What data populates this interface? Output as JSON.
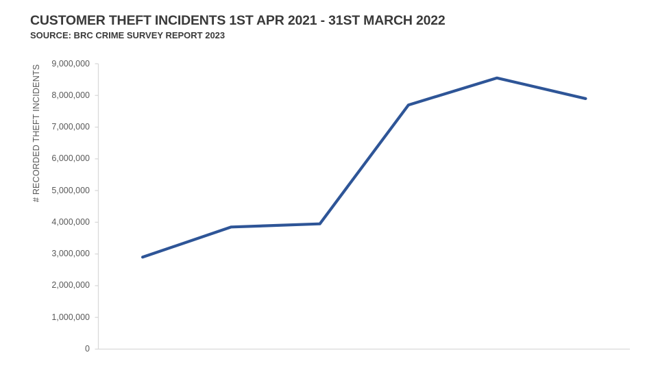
{
  "header": {
    "title": "CUSTOMER THEFT INCIDENTS 1ST APR 2021 - 31ST MARCH 2022",
    "subtitle": "SOURCE: BRC CRIME SURVEY REPORT 2023"
  },
  "colors": {
    "line": "#2e5597",
    "axis": "#d9d9d9",
    "title_text": "#3a3a3a",
    "tick_text": "#595959"
  },
  "chart_data": {
    "type": "line",
    "title": "CUSTOMER THEFT INCIDENTS 1ST APR 2021 - 31ST MARCH 2022",
    "subtitle": "SOURCE: BRC CRIME SURVEY REPORT 2023",
    "xlabel": "",
    "ylabel": "# RECORDED THEFT INCIDENTS",
    "values": [
      2900000,
      3850000,
      3950000,
      7700000,
      8550000,
      7900000
    ],
    "x_tick_labels": [],
    "ylim": [
      0,
      9000000
    ],
    "ytick_step": 1000000,
    "ytick_labels": [
      "0",
      "1,000,000",
      "2,000,000",
      "3,000,000",
      "4,000,000",
      "5,000,000",
      "6,000,000",
      "7,000,000",
      "8,000,000",
      "9,000,000"
    ],
    "grid": false,
    "legend": "none",
    "markers": "none",
    "line_color": "#2e5597",
    "line_width": 4.2
  }
}
